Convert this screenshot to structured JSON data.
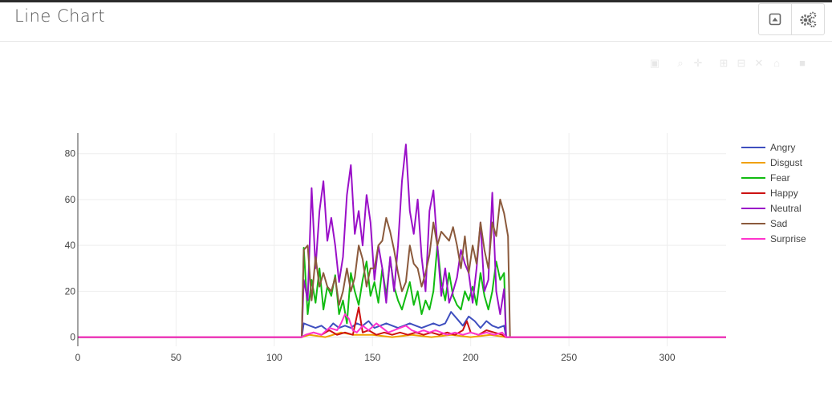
{
  "header": {
    "title": "Line Chart",
    "buttons": [
      {
        "icon": "collapse-icon"
      },
      {
        "icon": "gears-icon"
      }
    ]
  },
  "modebar": {
    "icons": [
      "camera-icon",
      "zoom-icon",
      "pan-icon",
      "zoom-in-icon",
      "zoom-out-icon",
      "autoscale-icon",
      "reset-axes-icon",
      "plotly-logo-icon"
    ]
  },
  "chart_data": {
    "type": "line",
    "title": "",
    "xlabel": "",
    "ylabel": "",
    "xlim": [
      0,
      330
    ],
    "ylim": [
      -4,
      89
    ],
    "xticks": [
      0,
      50,
      100,
      150,
      200,
      250,
      300
    ],
    "yticks": [
      0,
      20,
      40,
      60,
      80
    ],
    "grid": true,
    "legend_position": "right",
    "series": [
      {
        "name": "Angry",
        "color": "#3f4fbf",
        "points": [
          [
            0,
            0
          ],
          [
            114,
            0
          ],
          [
            115,
            6
          ],
          [
            118,
            5
          ],
          [
            121,
            4
          ],
          [
            124,
            5
          ],
          [
            127,
            3
          ],
          [
            130,
            6
          ],
          [
            133,
            4
          ],
          [
            136,
            5
          ],
          [
            139,
            4
          ],
          [
            142,
            6
          ],
          [
            145,
            5
          ],
          [
            148,
            7
          ],
          [
            151,
            4
          ],
          [
            154,
            5
          ],
          [
            157,
            6
          ],
          [
            160,
            5
          ],
          [
            163,
            4
          ],
          [
            166,
            5
          ],
          [
            169,
            6
          ],
          [
            172,
            5
          ],
          [
            175,
            4
          ],
          [
            178,
            5
          ],
          [
            181,
            6
          ],
          [
            184,
            5
          ],
          [
            187,
            6
          ],
          [
            190,
            11
          ],
          [
            193,
            8
          ],
          [
            196,
            5
          ],
          [
            199,
            9
          ],
          [
            202,
            7
          ],
          [
            205,
            4
          ],
          [
            208,
            7
          ],
          [
            211,
            5
          ],
          [
            214,
            4
          ],
          [
            217,
            5
          ],
          [
            218,
            0
          ],
          [
            330,
            0
          ]
        ]
      },
      {
        "name": "Disgust",
        "color": "#f0a000",
        "points": [
          [
            0,
            0
          ],
          [
            114,
            0
          ],
          [
            118,
            1
          ],
          [
            126,
            0
          ],
          [
            134,
            2
          ],
          [
            140,
            1
          ],
          [
            150,
            1
          ],
          [
            160,
            0
          ],
          [
            170,
            1
          ],
          [
            180,
            0
          ],
          [
            190,
            1
          ],
          [
            200,
            0
          ],
          [
            210,
            1
          ],
          [
            218,
            0
          ],
          [
            330,
            0
          ]
        ]
      },
      {
        "name": "Fear",
        "color": "#11bb11",
        "points": [
          [
            0,
            0
          ],
          [
            114,
            0
          ],
          [
            115,
            39
          ],
          [
            117,
            10
          ],
          [
            119,
            25
          ],
          [
            121,
            15
          ],
          [
            123,
            30
          ],
          [
            125,
            12
          ],
          [
            127,
            22
          ],
          [
            129,
            18
          ],
          [
            131,
            27
          ],
          [
            133,
            10
          ],
          [
            135,
            16
          ],
          [
            137,
            6
          ],
          [
            139,
            28
          ],
          [
            141,
            20
          ],
          [
            143,
            14
          ],
          [
            145,
            25
          ],
          [
            147,
            33
          ],
          [
            149,
            18
          ],
          [
            151,
            24
          ],
          [
            153,
            15
          ],
          [
            155,
            30
          ],
          [
            157,
            18
          ],
          [
            159,
            34
          ],
          [
            161,
            22
          ],
          [
            163,
            16
          ],
          [
            165,
            12
          ],
          [
            167,
            18
          ],
          [
            169,
            24
          ],
          [
            171,
            14
          ],
          [
            173,
            20
          ],
          [
            175,
            10
          ],
          [
            177,
            16
          ],
          [
            179,
            12
          ],
          [
            181,
            20
          ],
          [
            183,
            40
          ],
          [
            185,
            24
          ],
          [
            187,
            16
          ],
          [
            189,
            28
          ],
          [
            191,
            18
          ],
          [
            193,
            14
          ],
          [
            195,
            12
          ],
          [
            197,
            20
          ],
          [
            199,
            16
          ],
          [
            201,
            22
          ],
          [
            203,
            14
          ],
          [
            205,
            28
          ],
          [
            207,
            18
          ],
          [
            209,
            12
          ],
          [
            211,
            20
          ],
          [
            213,
            33
          ],
          [
            215,
            25
          ],
          [
            217,
            28
          ],
          [
            218,
            0
          ],
          [
            330,
            0
          ]
        ]
      },
      {
        "name": "Happy",
        "color": "#cc1111",
        "points": [
          [
            0,
            0
          ],
          [
            114,
            0
          ],
          [
            116,
            1
          ],
          [
            120,
            2
          ],
          [
            124,
            1
          ],
          [
            128,
            3
          ],
          [
            132,
            1
          ],
          [
            136,
            2
          ],
          [
            140,
            1
          ],
          [
            143,
            13
          ],
          [
            145,
            2
          ],
          [
            148,
            3
          ],
          [
            152,
            1
          ],
          [
            156,
            2
          ],
          [
            160,
            1
          ],
          [
            164,
            2
          ],
          [
            168,
            1
          ],
          [
            172,
            2
          ],
          [
            176,
            1
          ],
          [
            180,
            2
          ],
          [
            184,
            1
          ],
          [
            188,
            2
          ],
          [
            192,
            1
          ],
          [
            196,
            3
          ],
          [
            198,
            7
          ],
          [
            200,
            2
          ],
          [
            204,
            1
          ],
          [
            208,
            3
          ],
          [
            212,
            2
          ],
          [
            216,
            1
          ],
          [
            218,
            0
          ],
          [
            330,
            0
          ]
        ]
      },
      {
        "name": "Neutral",
        "color": "#9a10c8",
        "points": [
          [
            0,
            0
          ],
          [
            114,
            0
          ],
          [
            115,
            25
          ],
          [
            117,
            16
          ],
          [
            119,
            65
          ],
          [
            121,
            30
          ],
          [
            123,
            55
          ],
          [
            125,
            68
          ],
          [
            127,
            42
          ],
          [
            129,
            52
          ],
          [
            131,
            40
          ],
          [
            133,
            24
          ],
          [
            135,
            35
          ],
          [
            137,
            62
          ],
          [
            139,
            75
          ],
          [
            141,
            45
          ],
          [
            143,
            55
          ],
          [
            145,
            40
          ],
          [
            147,
            62
          ],
          [
            149,
            50
          ],
          [
            151,
            25
          ],
          [
            153,
            40
          ],
          [
            155,
            30
          ],
          [
            157,
            15
          ],
          [
            159,
            35
          ],
          [
            161,
            20
          ],
          [
            163,
            40
          ],
          [
            165,
            68
          ],
          [
            167,
            84
          ],
          [
            169,
            55
          ],
          [
            171,
            45
          ],
          [
            173,
            60
          ],
          [
            175,
            35
          ],
          [
            177,
            20
          ],
          [
            179,
            55
          ],
          [
            181,
            64
          ],
          [
            183,
            40
          ],
          [
            185,
            18
          ],
          [
            187,
            30
          ],
          [
            189,
            15
          ],
          [
            191,
            20
          ],
          [
            193,
            26
          ],
          [
            195,
            38
          ],
          [
            197,
            32
          ],
          [
            199,
            28
          ],
          [
            201,
            15
          ],
          [
            203,
            30
          ],
          [
            205,
            50
          ],
          [
            207,
            20
          ],
          [
            209,
            25
          ],
          [
            211,
            63
          ],
          [
            213,
            20
          ],
          [
            215,
            10
          ],
          [
            217,
            21
          ],
          [
            218,
            0
          ],
          [
            330,
            0
          ]
        ]
      },
      {
        "name": "Sad",
        "color": "#8b5a3c",
        "points": [
          [
            0,
            0
          ],
          [
            114,
            0
          ],
          [
            115,
            38
          ],
          [
            117,
            40
          ],
          [
            119,
            16
          ],
          [
            121,
            35
          ],
          [
            123,
            22
          ],
          [
            125,
            28
          ],
          [
            127,
            22
          ],
          [
            129,
            20
          ],
          [
            131,
            26
          ],
          [
            133,
            14
          ],
          [
            135,
            20
          ],
          [
            137,
            30
          ],
          [
            139,
            20
          ],
          [
            141,
            26
          ],
          [
            143,
            40
          ],
          [
            145,
            34
          ],
          [
            147,
            22
          ],
          [
            149,
            30
          ],
          [
            151,
            30
          ],
          [
            153,
            40
          ],
          [
            155,
            42
          ],
          [
            157,
            52
          ],
          [
            159,
            46
          ],
          [
            161,
            38
          ],
          [
            163,
            28
          ],
          [
            165,
            20
          ],
          [
            167,
            24
          ],
          [
            169,
            40
          ],
          [
            171,
            32
          ],
          [
            173,
            30
          ],
          [
            175,
            22
          ],
          [
            177,
            28
          ],
          [
            179,
            36
          ],
          [
            181,
            50
          ],
          [
            183,
            40
          ],
          [
            185,
            46
          ],
          [
            187,
            44
          ],
          [
            189,
            42
          ],
          [
            191,
            48
          ],
          [
            193,
            40
          ],
          [
            195,
            30
          ],
          [
            197,
            44
          ],
          [
            199,
            28
          ],
          [
            201,
            40
          ],
          [
            203,
            32
          ],
          [
            205,
            50
          ],
          [
            207,
            38
          ],
          [
            209,
            30
          ],
          [
            211,
            50
          ],
          [
            213,
            44
          ],
          [
            215,
            60
          ],
          [
            217,
            54
          ],
          [
            219,
            44
          ],
          [
            220,
            0
          ],
          [
            330,
            0
          ]
        ]
      },
      {
        "name": "Surprise",
        "color": "#ff33cc",
        "points": [
          [
            0,
            0
          ],
          [
            114,
            0
          ],
          [
            116,
            1
          ],
          [
            120,
            2
          ],
          [
            124,
            1
          ],
          [
            128,
            4
          ],
          [
            132,
            3
          ],
          [
            134,
            6
          ],
          [
            136,
            10
          ],
          [
            138,
            8
          ],
          [
            140,
            3
          ],
          [
            142,
            2
          ],
          [
            145,
            5
          ],
          [
            148,
            3
          ],
          [
            152,
            6
          ],
          [
            155,
            4
          ],
          [
            158,
            2
          ],
          [
            161,
            3
          ],
          [
            164,
            4
          ],
          [
            167,
            5
          ],
          [
            170,
            3
          ],
          [
            173,
            2
          ],
          [
            176,
            3
          ],
          [
            179,
            2
          ],
          [
            182,
            3
          ],
          [
            185,
            2
          ],
          [
            188,
            1
          ],
          [
            192,
            2
          ],
          [
            196,
            1
          ],
          [
            200,
            2
          ],
          [
            204,
            1
          ],
          [
            208,
            2
          ],
          [
            212,
            1
          ],
          [
            216,
            2
          ],
          [
            218,
            0
          ],
          [
            330,
            0
          ]
        ]
      }
    ]
  }
}
